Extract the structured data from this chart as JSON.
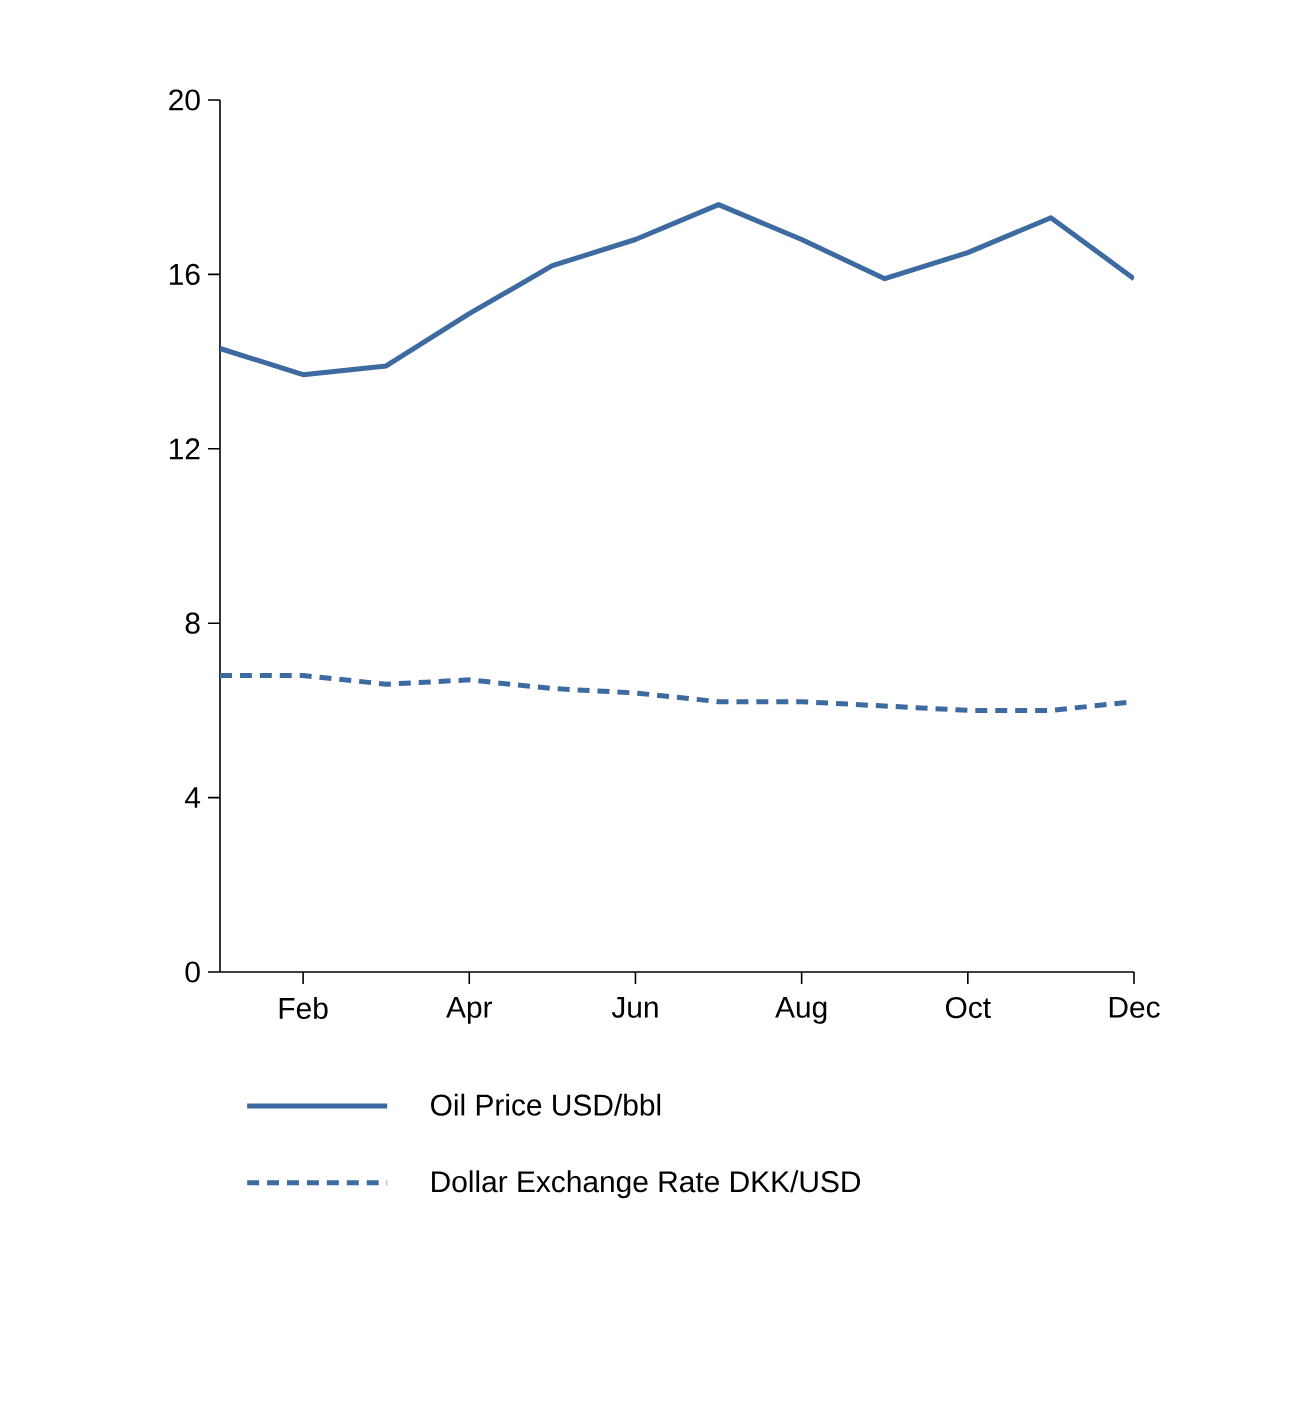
{
  "chart_data": {
    "type": "line",
    "categories": [
      null,
      "Feb",
      null,
      "Apr",
      null,
      "Jun",
      null,
      "Aug",
      null,
      "Oct",
      null,
      "Dec"
    ],
    "series": [
      {
        "name": "Oil Price USD/bbl",
        "color": "#3d6aa0",
        "line_style": "solid",
        "values": [
          14.3,
          13.7,
          13.9,
          15.1,
          16.2,
          16.8,
          17.6,
          16.8,
          15.9,
          16.5,
          17.3,
          15.9
        ]
      },
      {
        "name": "Dollar Exchange Rate DKK/USD",
        "color": "#3d6aa0",
        "line_style": "dashed",
        "values": [
          6.8,
          6.8,
          6.6,
          6.7,
          6.5,
          6.4,
          6.2,
          6.2,
          6.1,
          6.0,
          6.0,
          6.2
        ]
      }
    ],
    "ylim": [
      0,
      20
    ],
    "yticks": [
      0,
      4,
      8,
      12,
      16,
      20
    ],
    "grid": false,
    "legend": "bottom"
  }
}
